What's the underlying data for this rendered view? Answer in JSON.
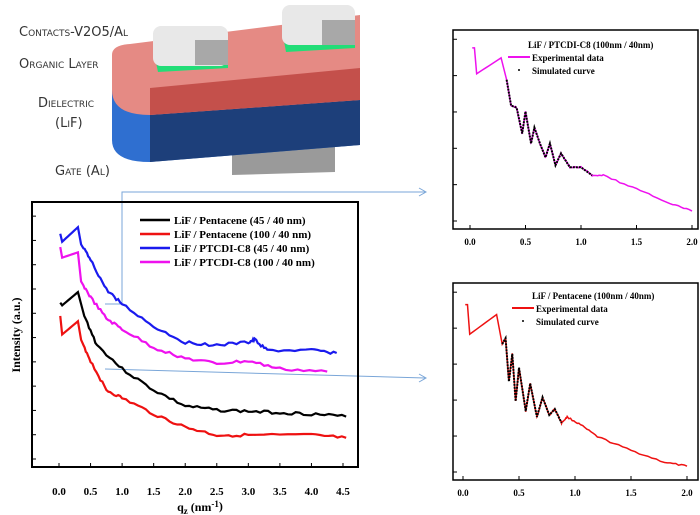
{
  "diagram": {
    "labels": [
      "Contacts-V2O5/Al",
      "Organic Layer",
      "Dielectric",
      "(LiF)",
      "Gate (Al)"
    ],
    "colors": {
      "organic": "#d9706a",
      "dielectric": "#2f6fd0",
      "contact": "#d8d8d8",
      "interlayer": "#22dd77",
      "gate": "#9a9a9a"
    }
  },
  "chart_data": [
    {
      "type": "line",
      "xlabel": "q",
      "xlabel_sub": "z",
      "xlabel_unit": " (nm",
      "xlabel_sup": "-1",
      "xlabel_close": ")",
      "ylabel": "Intensity (a.u.)",
      "xlim": [
        -0.3,
        4.7
      ],
      "ylim": [
        0,
        100
      ],
      "xticks": [
        "0.0",
        "0.5",
        "1.0",
        "1.5",
        "2.0",
        "2.5",
        "3.0",
        "3.5",
        "4.0",
        "4.5"
      ],
      "legend": "top-right",
      "series": [
        {
          "name": "LiF / Pentacene (45 / 40 nm)",
          "color": "#000000",
          "x": [
            0.02,
            0.05,
            0.3,
            0.4,
            0.6,
            1.0,
            1.5,
            2.0,
            2.5,
            3.0,
            3.5,
            4.0,
            4.55
          ],
          "y": [
            62,
            61,
            66,
            57,
            46,
            37,
            29,
            23,
            21.5,
            21,
            20.5,
            20,
            19
          ]
        },
        {
          "name": "LiF / Pentacene (100 / 40 nm)",
          "color": "#ee1111",
          "x": [
            0.02,
            0.05,
            0.3,
            0.35,
            0.5,
            0.75,
            1.0,
            1.5,
            2.0,
            2.5,
            3.0,
            4.0,
            4.55
          ],
          "y": [
            57,
            50,
            55,
            48,
            40,
            29,
            26,
            20,
            15,
            12,
            12,
            12,
            11
          ]
        },
        {
          "name": "LiF / PTCDI-C8 (45 / 40 nm)",
          "color": "#1a1aee",
          "x": [
            0.02,
            0.05,
            0.3,
            0.35,
            0.5,
            0.75,
            1.0,
            1.5,
            2.0,
            2.5,
            3.0,
            3.1,
            3.3,
            4.0,
            4.4
          ],
          "y": [
            88,
            85,
            90.5,
            84,
            78,
            67,
            61.5,
            53,
            47,
            46,
            47,
            48,
            44,
            44,
            43
          ]
        },
        {
          "name": "LiF / PTCDI-C8 (100 / 40 nm)",
          "color": "#ee11ee",
          "x": [
            0.02,
            0.05,
            0.3,
            0.35,
            0.5,
            0.75,
            1.0,
            1.5,
            2.0,
            2.5,
            3.0,
            3.5,
            4.25
          ],
          "y": [
            83,
            79,
            81,
            70,
            64,
            56,
            52,
            45,
            41,
            39,
            40,
            37,
            36
          ]
        }
      ]
    },
    {
      "type": "line",
      "title": "LiF / PTCDI-C8 (100nm / 40nm)",
      "xlim": [
        -0.08,
        2.05
      ],
      "ylim": [
        0,
        100
      ],
      "xticks": [
        "0.0",
        "0.5",
        "1.0",
        "1.5",
        "2.0"
      ],
      "legend": "top-right",
      "series": [
        {
          "name": "Experimental data",
          "color": "#ee11ee",
          "x": [
            0.02,
            0.04,
            0.06,
            0.28,
            0.33,
            0.37,
            0.42,
            0.47,
            0.5,
            0.55,
            0.58,
            0.63,
            0.68,
            0.72,
            0.77,
            0.82,
            0.9,
            1.0,
            1.1,
            1.2,
            1.5,
            1.8,
            2.0
          ],
          "y": [
            91,
            91,
            78,
            86,
            75,
            62,
            61,
            48,
            59,
            43,
            51,
            43,
            36,
            43,
            32,
            38,
            31,
            31,
            27,
            27,
            20,
            13,
            9
          ]
        },
        {
          "name": "Simulated curve",
          "color": "#000000",
          "x": [
            0.33,
            0.37,
            0.42,
            0.47,
            0.5,
            0.55,
            0.58,
            0.63,
            0.68,
            0.72,
            0.77,
            0.82,
            0.9,
            1.0,
            1.1
          ],
          "y": [
            75,
            62,
            61,
            48,
            59,
            43,
            51,
            43,
            36,
            43,
            32,
            38,
            31,
            31,
            27
          ]
        }
      ]
    },
    {
      "type": "line",
      "title": "LiF / Pentacene (100nm / 40nm)",
      "xlim": [
        -0.05,
        2.05
      ],
      "ylim": [
        0,
        100
      ],
      "xticks": [
        "0.0",
        "0.5",
        "1.0",
        "1.5",
        "2.0"
      ],
      "legend": "top-right",
      "series": [
        {
          "name": "Experimental data",
          "color": "#ee1111",
          "x": [
            0.02,
            0.04,
            0.06,
            0.3,
            0.35,
            0.38,
            0.41,
            0.44,
            0.47,
            0.5,
            0.56,
            0.6,
            0.66,
            0.71,
            0.77,
            0.82,
            0.88,
            0.93,
            1.05,
            1.2,
            1.5,
            1.8,
            2.0
          ],
          "y": [
            89,
            89,
            74,
            84,
            69,
            72,
            50,
            64,
            40,
            57,
            35,
            49,
            32,
            42,
            33,
            36,
            29,
            32,
            28,
            22,
            15,
            9,
            7
          ]
        },
        {
          "name": "Simulated curve",
          "color": "#000000",
          "x": [
            0.35,
            0.38,
            0.41,
            0.44,
            0.47,
            0.5,
            0.56,
            0.6,
            0.66,
            0.71,
            0.77,
            0.82,
            0.88
          ],
          "y": [
            69,
            72,
            50,
            64,
            40,
            57,
            35,
            49,
            32,
            42,
            33,
            36,
            29
          ]
        }
      ]
    }
  ]
}
